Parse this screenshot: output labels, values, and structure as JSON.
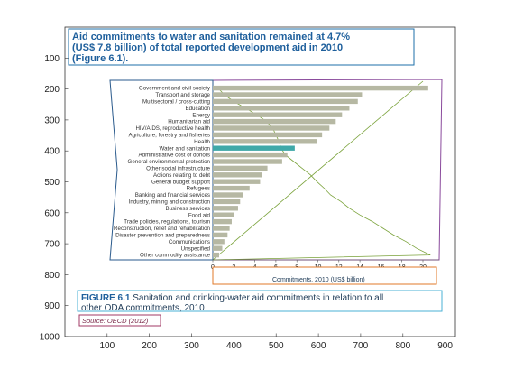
{
  "figure": {
    "headline_lines": [
      "Aid commitments to water and sanitation remained at 4.7%",
      "(US$ 7.8 billion) of total reported development aid in 2010",
      "(Figure 6.1)."
    ],
    "caption_label": "FIGURE 6.1",
    "caption_line1_rest": " Sanitation and drinking-water aid commitments in relation to all",
    "caption_line2": "other ODA commitments, 2010",
    "source": "Source: OECD (2012)",
    "outer_x_ticks": [
      "100",
      "200",
      "300",
      "400",
      "500",
      "600",
      "700",
      "800",
      "900"
    ],
    "outer_y_ticks": [
      "100",
      "200",
      "300",
      "400",
      "500",
      "600",
      "700",
      "800",
      "900",
      "1000"
    ]
  },
  "colors": {
    "bar": "#b6b8a3",
    "highlight_bar": "#3fa9a9",
    "cumulative_line": "#7aa23a",
    "diagonal_line": "#7aa23a",
    "headline_border": "#1e6fa8",
    "caption_border": "#4ab0d6",
    "frame": "#8a4a9c",
    "label_box": "#2a5a8c",
    "xlabel_box": "#e07a2a",
    "source_box": "#a03a64"
  },
  "chart_data": {
    "type": "bar",
    "orientation": "horizontal",
    "xlabel": "Commitments, 2010 (US$ billion)",
    "xlim": [
      0,
      21
    ],
    "x_ticks": [
      0,
      2,
      4,
      6,
      8,
      10,
      12,
      14,
      16,
      18,
      20
    ],
    "categories": [
      "Government and civil society",
      "Transport and storage",
      "Multisectoral / cross-cutting",
      "Education",
      "Energy",
      "Humanitarian aid",
      "HIV/AIDS, reproductive health",
      "Agriculture, forestry and fisheries",
      "Health",
      "Water and sanitation",
      "Administrative cost of donors",
      "General environmental protection",
      "Other social infrastructure",
      "Actions relating to debt",
      "General budget support",
      "Refugees",
      "Banking and financial services",
      "Industry, mining and construction",
      "Business services",
      "Food aid",
      "Trade policies, regulations, tourism",
      "Reconstruction, relief and rehabilitation",
      "Disaster prevention and preparedness",
      "Communications",
      "Unspecified",
      "Other commodity assistance"
    ],
    "values": [
      20.5,
      14.2,
      13.8,
      13.0,
      12.3,
      11.7,
      11.1,
      10.4,
      9.9,
      7.8,
      7.1,
      6.6,
      5.2,
      4.7,
      4.5,
      3.5,
      2.9,
      2.6,
      2.4,
      2.0,
      1.8,
      1.6,
      1.4,
      1.1,
      0.9,
      0.6
    ],
    "highlight_index": 9,
    "cumulative_line_x": [
      0.5,
      1.1,
      2.0,
      3.1,
      4.2,
      5.1,
      5.7,
      6.0,
      6.3,
      6.5,
      6.9,
      7.7,
      8.5,
      9.3,
      9.9,
      10.6,
      11.2,
      12.2,
      13.0,
      14.0,
      15.2,
      16.2,
      17.2,
      18.4,
      19.4,
      20.7
    ],
    "grid": false,
    "legend": "none"
  }
}
